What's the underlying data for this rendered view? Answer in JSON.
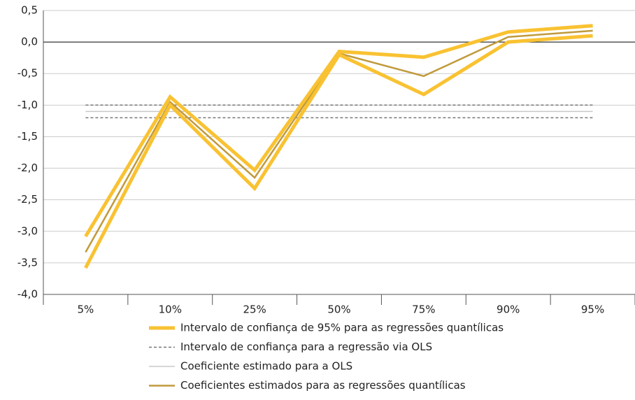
{
  "chart_data": {
    "type": "line",
    "categories": [
      "5%",
      "10%",
      "25%",
      "50%",
      "75%",
      "90%",
      "95%"
    ],
    "ylim": [
      -4.0,
      0.5
    ],
    "yticks": [
      {
        "value": 0.5,
        "label": "0,5"
      },
      {
        "value": 0.0,
        "label": "0,0"
      },
      {
        "value": -0.5,
        "label": "-0,5"
      },
      {
        "value": -1.0,
        "label": "-1,0"
      },
      {
        "value": -1.5,
        "label": "-1,5"
      },
      {
        "value": -2.0,
        "label": "-2,0"
      },
      {
        "value": -2.5,
        "label": "-2,5"
      },
      {
        "value": -3.0,
        "label": "-3,0"
      },
      {
        "value": -3.5,
        "label": "-3,5"
      },
      {
        "value": -4.0,
        "label": "-4,0"
      }
    ],
    "grid": true,
    "legend": "bottom",
    "series": [
      {
        "name": "Intervalo de confiança de 95% para as regressões quantílicas",
        "color": "#f9c232",
        "width": 5,
        "dashed": false,
        "upper": [
          -3.08,
          -0.87,
          -2.03,
          -0.15,
          -0.24,
          0.16,
          0.26
        ],
        "lower": [
          -3.58,
          -1.0,
          -2.32,
          -0.2,
          -0.83,
          0.0,
          0.1
        ]
      },
      {
        "name": "Intervalo de confiança para a regressão via OLS",
        "color": "#777777",
        "width": 1.5,
        "dashed": true,
        "upper": [
          -1.0,
          -1.0,
          -1.0,
          -1.0,
          -1.0,
          -1.0,
          -1.0
        ],
        "lower": [
          -1.2,
          -1.2,
          -1.2,
          -1.2,
          -1.2,
          -1.2,
          -1.2
        ]
      },
      {
        "name": "Coeficiente estimado para a OLS",
        "color": "#c8c8c8",
        "width": 1.5,
        "dashed": false,
        "values": [
          -1.1,
          -1.1,
          -1.1,
          -1.1,
          -1.1,
          -1.1,
          -1.1
        ]
      },
      {
        "name": "Coeficientes estimados para as regressões quantílicas",
        "color": "#c09a3c",
        "width": 2.5,
        "dashed": false,
        "values": [
          -3.33,
          -0.95,
          -2.15,
          -0.18,
          -0.54,
          0.08,
          0.18
        ]
      }
    ]
  }
}
